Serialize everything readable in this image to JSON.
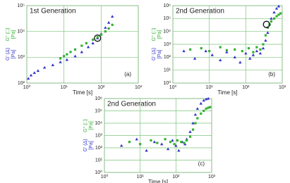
{
  "chart_data": [
    {
      "type": "scatter",
      "title": "1st Generation",
      "panel": "(a)",
      "xlabel": "Time [s]",
      "yunit": "[Pa]",
      "xscale": "log",
      "yscale": "log",
      "grid": true,
      "xlim": [
        1,
        1000
      ],
      "ylim": [
        100,
        100000
      ],
      "xticks": [
        {
          "value": 1,
          "label": "10⁰"
        },
        {
          "value": 10,
          "label": "10¹"
        },
        {
          "value": 100,
          "label": "10²"
        },
        {
          "value": 1000,
          "label": "10³"
        }
      ],
      "yticks": [
        {
          "value": 100,
          "label": "10²"
        },
        {
          "value": 1000,
          "label": "10³"
        },
        {
          "value": 10000,
          "label": "10⁴"
        },
        {
          "value": 100000,
          "label": "10⁵"
        }
      ],
      "crossover": {
        "x": 80,
        "y": 5500
      },
      "series": [
        {
          "name": "G' (Δ)",
          "color": "#3535c8",
          "marker": "triangle",
          "x": [
            1.1,
            1.3,
            1.6,
            2,
            3,
            5,
            8,
            12,
            20,
            30,
            45,
            60,
            80,
            100,
            130,
            160,
            200
          ],
          "values": [
            150,
            200,
            250,
            300,
            400,
            500,
            650,
            800,
            1100,
            1600,
            2500,
            3500,
            5500,
            8000,
            14000,
            22000,
            38000
          ]
        },
        {
          "name": "G'' (□)",
          "color": "#33b033",
          "marker": "square",
          "x": [
            8,
            10,
            12,
            15,
            20,
            30,
            40,
            60,
            80,
            100,
            130,
            160,
            200
          ],
          "values": [
            900,
            1100,
            1300,
            1600,
            2000,
            2800,
            3500,
            4800,
            6000,
            7500,
            10000,
            13000,
            18000
          ]
        }
      ]
    },
    {
      "type": "scatter",
      "title": "2nd Generation",
      "panel": "(b)",
      "xlabel": "Time [s]",
      "yunit": "[Pa]",
      "xscale": "log",
      "yscale": "log",
      "grid": true,
      "xlim": [
        1,
        1000
      ],
      "ylim": [
        1,
        1000000
      ],
      "xticks": [
        {
          "value": 1,
          "label": "10⁰"
        },
        {
          "value": 10,
          "label": "10¹"
        },
        {
          "value": 100,
          "label": "10²"
        },
        {
          "value": 1000,
          "label": "10³"
        }
      ],
      "yticks": [
        {
          "value": 1,
          "label": "10⁰"
        },
        {
          "value": 10,
          "label": "10¹"
        },
        {
          "value": 100,
          "label": "10²"
        },
        {
          "value": 1000,
          "label": "10³"
        },
        {
          "value": 10000,
          "label": "10⁴"
        },
        {
          "value": 100000,
          "label": "10⁵"
        },
        {
          "value": 1000000,
          "label": "10⁶"
        }
      ],
      "crossover": {
        "x": 370,
        "y": 35000
      },
      "series": [
        {
          "name": "G' (Δ)",
          "color": "#3535c8",
          "marker": "triangle",
          "x": [
            2,
            4,
            8,
            12,
            20,
            30,
            50,
            70,
            100,
            130,
            160,
            200,
            250,
            300,
            350,
            400,
            450,
            500,
            600,
            700,
            800
          ],
          "values": [
            300,
            80,
            300,
            150,
            60,
            250,
            100,
            40,
            200,
            80,
            150,
            300,
            200,
            500,
            2000,
            8000,
            35000,
            100000,
            300000,
            600000,
            900000
          ]
        },
        {
          "name": "G'' (□)",
          "color": "#33b033",
          "marker": "square",
          "x": [
            3,
            6,
            10,
            20,
            30,
            50,
            80,
            120,
            160,
            200,
            250,
            300,
            350,
            400,
            450,
            500,
            600,
            700,
            800,
            900
          ],
          "values": [
            400,
            500,
            300,
            600,
            350,
            400,
            300,
            500,
            250,
            600,
            400,
            1000,
            5000,
            20000,
            35000,
            60000,
            100000,
            150000,
            200000,
            250000
          ]
        }
      ]
    },
    {
      "type": "scatter",
      "title": "2nd Generation",
      "panel": "(c)",
      "xlabel": "Time [s]",
      "yunit": "[Pa]",
      "xscale": "log",
      "yscale": "log",
      "grid": true,
      "xlim": [
        1,
        1000
      ],
      "ylim": [
        1,
        1000000
      ],
      "xticks": [
        {
          "value": 1,
          "label": "10⁰"
        },
        {
          "value": 10,
          "label": "10¹"
        },
        {
          "value": 100,
          "label": "10²"
        },
        {
          "value": 1000,
          "label": "10³"
        }
      ],
      "yticks": [
        {
          "value": 1,
          "label": "10⁰"
        },
        {
          "value": 10,
          "label": "10¹"
        },
        {
          "value": 100,
          "label": "10²"
        },
        {
          "value": 1000,
          "label": "10³"
        },
        {
          "value": 10000,
          "label": "10⁴"
        },
        {
          "value": 100000,
          "label": "10⁵"
        },
        {
          "value": 1000000,
          "label": "10⁶"
        }
      ],
      "series": [
        {
          "name": "G' (Δ)",
          "color": "#3535c8",
          "marker": "triangle",
          "x": [
            3,
            8,
            15,
            25,
            40,
            60,
            80,
            100,
            120,
            150,
            180,
            200,
            250,
            300,
            350,
            400,
            500,
            600,
            700,
            800
          ],
          "values": [
            150,
            500,
            60,
            300,
            200,
            80,
            400,
            150,
            60,
            300,
            200,
            500,
            2000,
            10000,
            50000,
            150000,
            400000,
            700000,
            900000,
            1000000
          ]
        },
        {
          "name": "G'' (□)",
          "color": "#33b033",
          "marker": "square",
          "x": [
            5,
            10,
            20,
            30,
            50,
            70,
            90,
            110,
            140,
            170,
            200,
            250,
            300,
            350,
            400,
            500,
            600,
            700,
            800,
            900
          ],
          "values": [
            300,
            200,
            400,
            250,
            500,
            300,
            200,
            400,
            300,
            250,
            400,
            800,
            3000,
            10000,
            25000,
            60000,
            100000,
            150000,
            180000,
            200000
          ]
        }
      ]
    }
  ]
}
